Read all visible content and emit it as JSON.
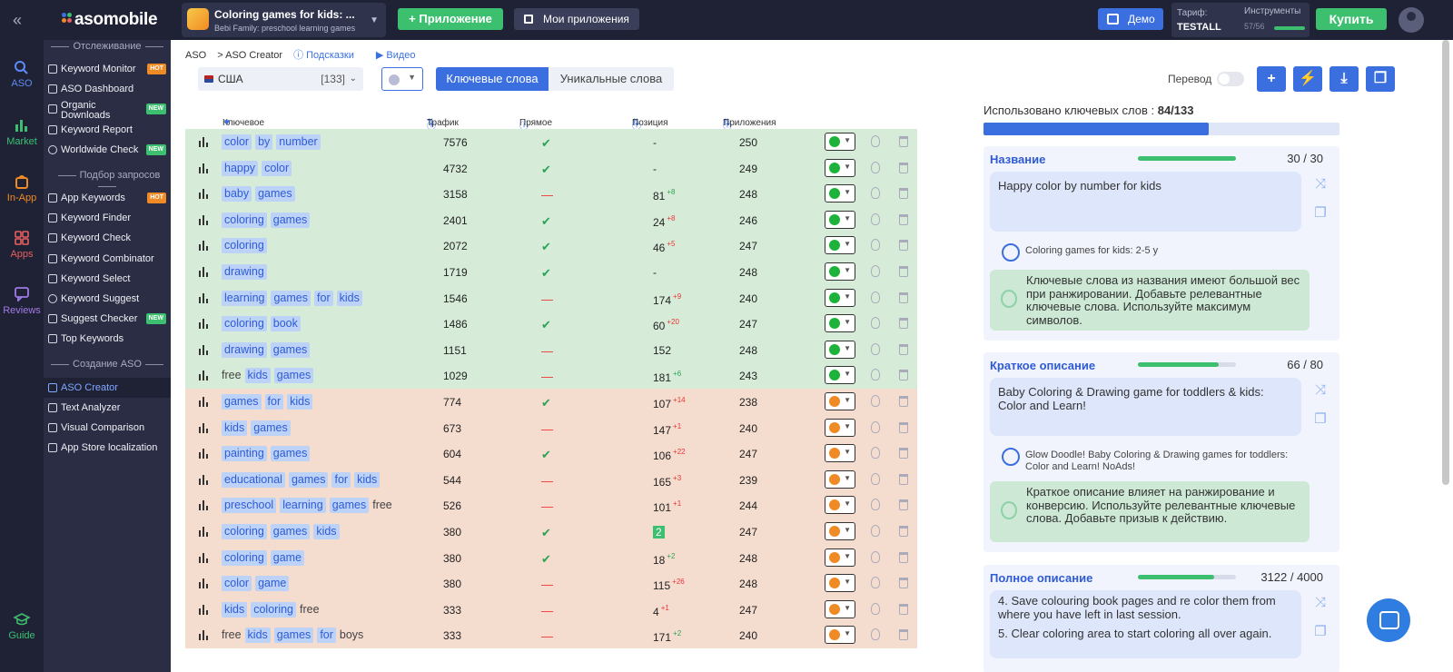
{
  "topbar": {
    "logo": "asomobile",
    "app_title": "Coloring games for kids: ...",
    "app_subtitle": "Bebi Family: preschool learning games",
    "add_app_label": "Приложение",
    "my_apps_label": "Мои приложения",
    "demo_label": "Демо",
    "tarif_label": "Тариф:",
    "tarif_value": "TESTALL",
    "tools_label": "Инструменты",
    "tools_value": "57/56",
    "buy_label": "Купить"
  },
  "rail": {
    "items": [
      {
        "label": "ASO",
        "icon": "search-icon"
      },
      {
        "label": "Market",
        "icon": "bar-chart-icon"
      },
      {
        "label": "In-App",
        "icon": "bag-icon"
      },
      {
        "label": "Apps",
        "icon": "apps-grid-icon"
      },
      {
        "label": "Reviews",
        "icon": "comment-icon"
      },
      {
        "label": "Guide",
        "icon": "graduation-cap-icon"
      }
    ]
  },
  "sidenav": {
    "sections": [
      {
        "title": "Отслеживание"
      },
      {
        "title": "Подбор запросов"
      },
      {
        "title": "Создание ASO"
      }
    ],
    "items": [
      {
        "label": "Keyword Monitor",
        "badge": "HOT"
      },
      {
        "label": "ASO Dashboard",
        "badge": ""
      },
      {
        "label": "Organic Downloads",
        "badge": "NEW"
      },
      {
        "label": "Keyword Report",
        "badge": ""
      },
      {
        "label": "Worldwide Check",
        "badge": "NEW"
      },
      {
        "label": "App Keywords",
        "badge": "HOT"
      },
      {
        "label": "Keyword Finder",
        "badge": ""
      },
      {
        "label": "Keyword Check",
        "badge": ""
      },
      {
        "label": "Keyword Combinator",
        "badge": ""
      },
      {
        "label": "Keyword Select",
        "badge": ""
      },
      {
        "label": "Keyword Suggest",
        "badge": ""
      },
      {
        "label": "Suggest Checker",
        "badge": "NEW"
      },
      {
        "label": "Top Keywords",
        "badge": ""
      },
      {
        "label": "ASO Creator",
        "badge": ""
      },
      {
        "label": "Text Analyzer",
        "badge": ""
      },
      {
        "label": "Visual Comparison",
        "badge": ""
      },
      {
        "label": "App Store localization",
        "badge": ""
      }
    ]
  },
  "breadcrumb": {
    "root": "ASO",
    "current": "> ASO Creator",
    "hints": "Подсказки",
    "video": "Видео"
  },
  "toolbar": {
    "country": "США",
    "country_count": "[133]",
    "tab_keywords": "Ключевые слова",
    "tab_unique": "Уникальные слова",
    "translate_label": "Перевод",
    "add_icon": "plus-icon",
    "bolt_icon": "bolt-icon",
    "download_icon": "download-icon",
    "copy_icon": "copy-icon"
  },
  "table": {
    "headers": {
      "keyword": "Ключевое слово",
      "traffic": "Трафик",
      "match": "Прямое вхождение",
      "position": "Позиция",
      "apps": "Приложения"
    },
    "rows": [
      {
        "tokens": [
          [
            "color",
            1
          ],
          [
            "by",
            1
          ],
          [
            "number",
            1
          ]
        ],
        "traffic": "7576",
        "match": "✔",
        "pos": "-",
        "delta": "",
        "apps": "250",
        "color": "#1db33a",
        "group": "g"
      },
      {
        "tokens": [
          [
            "happy",
            1
          ],
          [
            "color",
            1
          ]
        ],
        "traffic": "4732",
        "match": "✔",
        "pos": "-",
        "delta": "",
        "apps": "249",
        "color": "#1db33a",
        "group": "g"
      },
      {
        "tokens": [
          [
            "baby",
            1
          ],
          [
            "games",
            1
          ]
        ],
        "traffic": "3158",
        "match": "—",
        "pos": "81",
        "delta": "+8",
        "apps": "248",
        "color": "#1db33a",
        "group": "g"
      },
      {
        "tokens": [
          [
            "coloring",
            1
          ],
          [
            "games",
            1
          ]
        ],
        "traffic": "2401",
        "match": "✔",
        "pos": "24",
        "delta": "+8",
        "apps": "246",
        "color": "#1db33a",
        "group": "g"
      },
      {
        "tokens": [
          [
            "coloring",
            1
          ]
        ],
        "traffic": "2072",
        "match": "✔",
        "pos": "46",
        "delta": "+5",
        "apps": "247",
        "color": "#1db33a",
        "group": "g"
      },
      {
        "tokens": [
          [
            "drawing",
            1
          ]
        ],
        "traffic": "1719",
        "match": "✔",
        "pos": "-",
        "delta": "",
        "apps": "248",
        "color": "#1db33a",
        "group": "g"
      },
      {
        "tokens": [
          [
            "learning",
            1
          ],
          [
            "games",
            1
          ],
          [
            "for",
            1
          ],
          [
            "kids",
            1
          ]
        ],
        "traffic": "1546",
        "match": "—",
        "pos": "174",
        "delta": "+9",
        "apps": "240",
        "color": "#1db33a",
        "group": "g"
      },
      {
        "tokens": [
          [
            "coloring",
            1
          ],
          [
            "book",
            1
          ]
        ],
        "traffic": "1486",
        "match": "✔",
        "pos": "60",
        "delta": "+20",
        "apps": "247",
        "color": "#1db33a",
        "group": "g"
      },
      {
        "tokens": [
          [
            "drawing",
            1
          ],
          [
            "games",
            1
          ]
        ],
        "traffic": "1151",
        "match": "—",
        "pos": "152",
        "delta": "",
        "apps": "248",
        "color": "#1db33a",
        "group": "g"
      },
      {
        "tokens": [
          [
            "free",
            0
          ],
          [
            "kids",
            1
          ],
          [
            "games",
            1
          ]
        ],
        "traffic": "1029",
        "match": "—",
        "pos": "181",
        "delta": "+6",
        "apps": "243",
        "color": "#1db33a",
        "group": "g"
      },
      {
        "tokens": [
          [
            "games",
            1
          ],
          [
            "for",
            1
          ],
          [
            "kids",
            1
          ]
        ],
        "traffic": "774",
        "match": "✔",
        "pos": "107",
        "delta": "+14",
        "apps": "238",
        "color": "#f08a24",
        "group": "o"
      },
      {
        "tokens": [
          [
            "kids",
            1
          ],
          [
            "games",
            1
          ]
        ],
        "traffic": "673",
        "match": "—",
        "pos": "147",
        "delta": "+1",
        "apps": "240",
        "color": "#f08a24",
        "group": "o"
      },
      {
        "tokens": [
          [
            "painting",
            1
          ],
          [
            "games",
            1
          ]
        ],
        "traffic": "604",
        "match": "✔",
        "pos": "106",
        "delta": "+22",
        "apps": "247",
        "color": "#f08a24",
        "group": "o"
      },
      {
        "tokens": [
          [
            "educational",
            1
          ],
          [
            "games",
            1
          ],
          [
            "for",
            1
          ],
          [
            "kids",
            1
          ]
        ],
        "traffic": "544",
        "match": "—",
        "pos": "165",
        "delta": "+3",
        "apps": "239",
        "color": "#f08a24",
        "group": "o"
      },
      {
        "tokens": [
          [
            "preschool",
            1
          ],
          [
            "learning",
            1
          ],
          [
            "games",
            1
          ],
          [
            "free",
            0
          ]
        ],
        "traffic": "526",
        "match": "—",
        "pos": "101",
        "delta": "+1",
        "apps": "244",
        "color": "#f08a24",
        "group": "o"
      },
      {
        "tokens": [
          [
            "coloring",
            1
          ],
          [
            "games",
            1
          ],
          [
            "kids",
            1
          ]
        ],
        "traffic": "380",
        "match": "✔",
        "pos": "2",
        "delta": "",
        "apps": "247",
        "color": "#f08a24",
        "group": "o",
        "hl": true
      },
      {
        "tokens": [
          [
            "coloring",
            1
          ],
          [
            "game",
            1
          ]
        ],
        "traffic": "380",
        "match": "✔",
        "pos": "18",
        "delta": "+2",
        "apps": "248",
        "color": "#f08a24",
        "group": "o"
      },
      {
        "tokens": [
          [
            "color",
            1
          ],
          [
            "game",
            1
          ]
        ],
        "traffic": "380",
        "match": "—",
        "pos": "115",
        "delta": "+26",
        "apps": "248",
        "color": "#f08a24",
        "group": "o"
      },
      {
        "tokens": [
          [
            "kids",
            1
          ],
          [
            "coloring",
            1
          ],
          [
            "free",
            0
          ]
        ],
        "traffic": "333",
        "match": "—",
        "pos": "4",
        "delta": "+1",
        "apps": "247",
        "color": "#f08a24",
        "group": "o"
      },
      {
        "tokens": [
          [
            "free",
            0
          ],
          [
            "kids",
            1
          ],
          [
            "games",
            1
          ],
          [
            "for",
            1
          ],
          [
            "boys",
            0
          ]
        ],
        "traffic": "333",
        "match": "—",
        "pos": "171",
        "delta": "+2",
        "apps": "240",
        "color": "#f08a24",
        "group": "o"
      }
    ]
  },
  "right": {
    "used_label": "Использовано ключевых слов :",
    "used_value": "84/133",
    "used_fraction": 0.632,
    "cards": [
      {
        "title": "Название",
        "count": "30 / 30",
        "fill": 1.0,
        "text": "Happy color by number for kids",
        "group": "Coloring games for kids: 2-5 y",
        "tip": "Ключевые слова из названия имеют большой вес при ранжировании. Добавьте релевантные ключевые слова. Используйте максимум символов."
      },
      {
        "title": "Краткое описание",
        "count": "66 / 80",
        "fill": 0.825,
        "text": "Baby Coloring & Drawing game for toddlers & kids: Color and Learn!",
        "group": "Glow Doodle! Baby Coloring & Drawing games for toddlers: Color and Learn! NoAds!",
        "tip": "Краткое описание влияет на ранжирование и конверсию. Используйте релевантные ключевые слова. Добавьте призыв к действию."
      },
      {
        "title": "Полное описание",
        "count": "3122 / 4000",
        "fill": 0.78,
        "text_lines": [
          "4. Save colouring book pages and re color them from where you have left in last session.",
          "5. Clear coloring area to start coloring all over again."
        ]
      }
    ]
  }
}
